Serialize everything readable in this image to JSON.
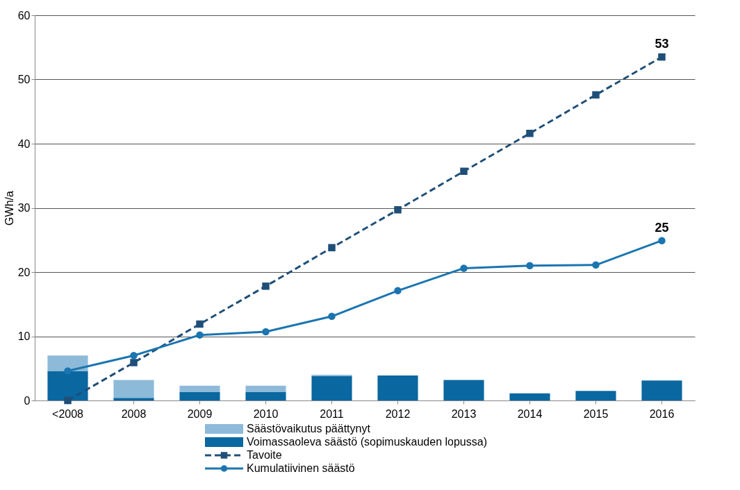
{
  "chart_data": {
    "type": "bar",
    "stacked": true,
    "ylabel": "GWh/a",
    "ylim": [
      0,
      60
    ],
    "yticks": [
      0,
      10,
      20,
      30,
      40,
      50,
      60
    ],
    "grid": "y",
    "legend": "bottom",
    "categories": [
      "<2008",
      "2008",
      "2009",
      "2010",
      "2011",
      "2012",
      "2013",
      "2014",
      "2015",
      "2016"
    ],
    "series": [
      {
        "name": "Voimassaoleva säästö (sopimuskauden lopussa)",
        "color": "#0a67a0",
        "values": [
          4.6,
          0.4,
          1.3,
          1.3,
          3.8,
          3.9,
          3.2,
          1.1,
          1.5,
          3.1
        ]
      },
      {
        "name": "Säästövaikutus päättynyt",
        "color": "#8dbad9",
        "values": [
          2.4,
          2.8,
          1.0,
          1.0,
          0.2,
          0,
          0,
          0,
          0,
          0
        ]
      },
      {
        "name": "Tavoite",
        "type": "line",
        "color": "#1f4f78",
        "line_style": "dashed",
        "marker": "square",
        "values": [
          0,
          5.9,
          11.9,
          17.8,
          23.8,
          29.7,
          35.7,
          41.6,
          47.6,
          53.5
        ],
        "value_labels": [
          null,
          null,
          null,
          null,
          null,
          null,
          null,
          null,
          null,
          "53"
        ]
      },
      {
        "name": "Kumulatiivinen säästö",
        "type": "line",
        "color": "#1a75b0",
        "line_style": "solid",
        "marker": "circle",
        "values": [
          4.6,
          7.0,
          10.2,
          10.7,
          13.1,
          17.1,
          20.6,
          21.0,
          21.1,
          24.9
        ],
        "value_labels": [
          null,
          null,
          null,
          null,
          null,
          null,
          null,
          null,
          null,
          "25"
        ]
      }
    ]
  }
}
